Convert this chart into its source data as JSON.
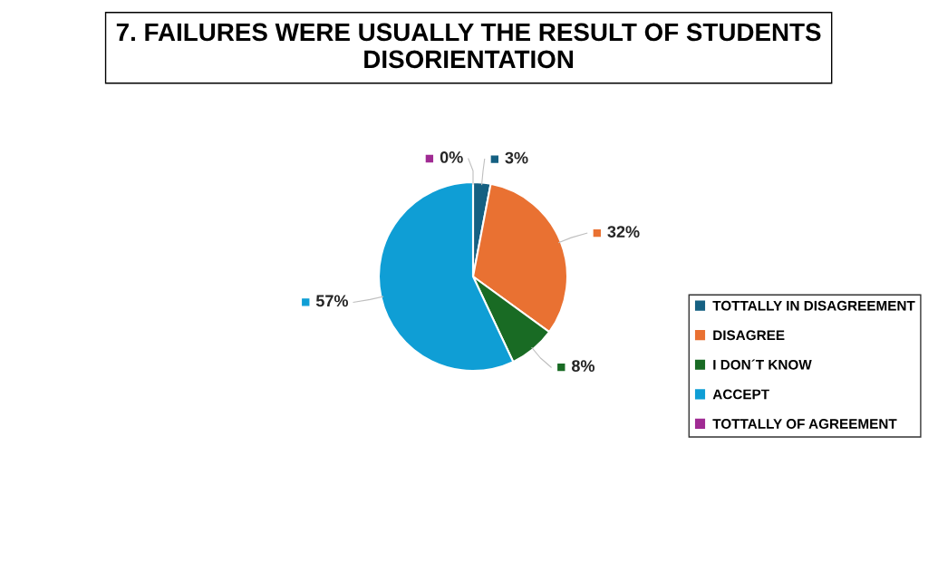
{
  "chart_data": {
    "type": "pie",
    "title": "7. FAILURES WERE USUALLY THE RESULT OF STUDENTS DISORIENTATION",
    "categories": [
      "TOTTALLY IN DISAGREEMENT",
      "DISAGREE",
      "I DON´T KNOW",
      "ACCEPT",
      "TOTTALLY OF AGREEMENT"
    ],
    "values": [
      3,
      32,
      8,
      57,
      0
    ],
    "colors": [
      "#156082",
      "#e97132",
      "#196b24",
      "#0f9ed5",
      "#a02b93"
    ],
    "value_labels": [
      "3%",
      "32%",
      "8%",
      "57%",
      "0%"
    ],
    "legend": "right"
  }
}
